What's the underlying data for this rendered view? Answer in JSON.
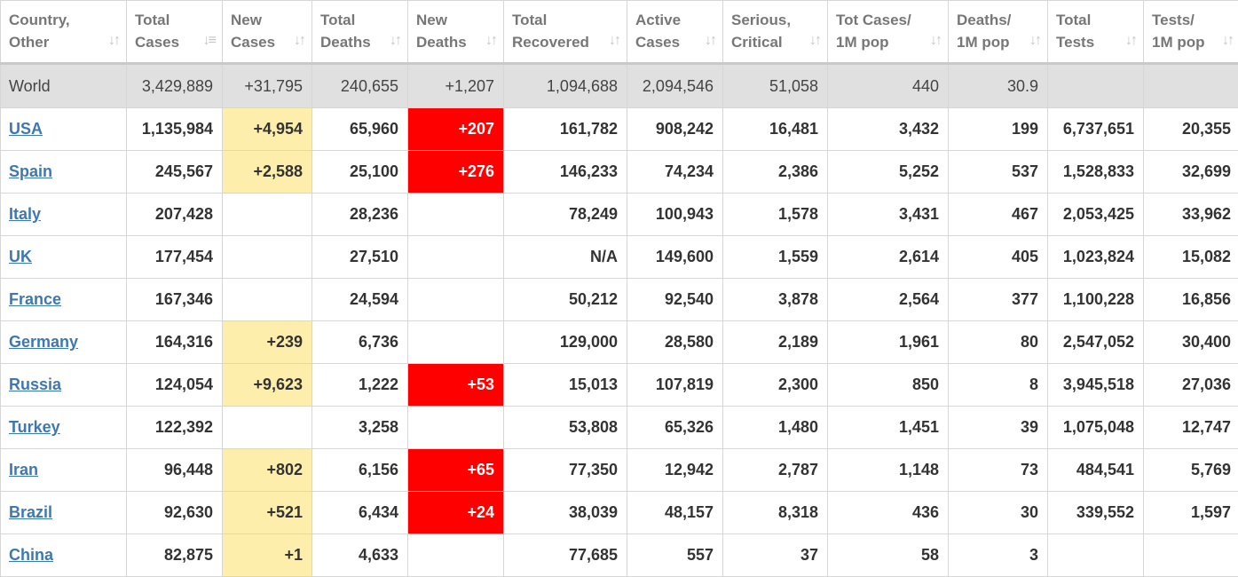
{
  "headers": [
    {
      "line1": "Country,",
      "line2": "Other"
    },
    {
      "line1": "Total",
      "line2": "Cases"
    },
    {
      "line1": "New",
      "line2": "Cases"
    },
    {
      "line1": "Total",
      "line2": "Deaths"
    },
    {
      "line1": "New",
      "line2": "Deaths"
    },
    {
      "line1": "Total",
      "line2": "Recovered"
    },
    {
      "line1": "Active",
      "line2": "Cases"
    },
    {
      "line1": "Serious,",
      "line2": "Critical"
    },
    {
      "line1": "Tot Cases/",
      "line2": "1M pop"
    },
    {
      "line1": "Deaths/",
      "line2": "1M pop"
    },
    {
      "line1": "Total",
      "line2": "Tests"
    },
    {
      "line1": "Tests/",
      "line2": "1M pop"
    }
  ],
  "icons": {
    "sort": "sort-arrows-icon",
    "sort_active": "sort-descending-icon"
  },
  "colors": {
    "new_cases_highlight": "#fdeeab",
    "new_deaths_highlight": "#ff0000",
    "link": "#3d78b4",
    "world_row": "#e0e0e0"
  },
  "world": [
    "World",
    "3,429,889",
    "+31,795",
    "240,655",
    "+1,207",
    "1,094,688",
    "2,094,546",
    "51,058",
    "440",
    "30.9",
    "",
    ""
  ],
  "rows": [
    [
      "USA",
      "1,135,984",
      "+4,954",
      "65,960",
      "+207",
      "161,782",
      "908,242",
      "16,481",
      "3,432",
      "199",
      "6,737,651",
      "20,355"
    ],
    [
      "Spain",
      "245,567",
      "+2,588",
      "25,100",
      "+276",
      "146,233",
      "74,234",
      "2,386",
      "5,252",
      "537",
      "1,528,833",
      "32,699"
    ],
    [
      "Italy",
      "207,428",
      "",
      "28,236",
      "",
      "78,249",
      "100,943",
      "1,578",
      "3,431",
      "467",
      "2,053,425",
      "33,962"
    ],
    [
      "UK",
      "177,454",
      "",
      "27,510",
      "",
      "N/A",
      "149,600",
      "1,559",
      "2,614",
      "405",
      "1,023,824",
      "15,082"
    ],
    [
      "France",
      "167,346",
      "",
      "24,594",
      "",
      "50,212",
      "92,540",
      "3,878",
      "2,564",
      "377",
      "1,100,228",
      "16,856"
    ],
    [
      "Germany",
      "164,316",
      "+239",
      "6,736",
      "",
      "129,000",
      "28,580",
      "2,189",
      "1,961",
      "80",
      "2,547,052",
      "30,400"
    ],
    [
      "Russia",
      "124,054",
      "+9,623",
      "1,222",
      "+53",
      "15,013",
      "107,819",
      "2,300",
      "850",
      "8",
      "3,945,518",
      "27,036"
    ],
    [
      "Turkey",
      "122,392",
      "",
      "3,258",
      "",
      "53,808",
      "65,326",
      "1,480",
      "1,451",
      "39",
      "1,075,048",
      "12,747"
    ],
    [
      "Iran",
      "96,448",
      "+802",
      "6,156",
      "+65",
      "77,350",
      "12,942",
      "2,787",
      "1,148",
      "73",
      "484,541",
      "5,769"
    ],
    [
      "Brazil",
      "92,630",
      "+521",
      "6,434",
      "+24",
      "38,039",
      "48,157",
      "8,318",
      "436",
      "30",
      "339,552",
      "1,597"
    ],
    [
      "China",
      "82,875",
      "+1",
      "4,633",
      "",
      "77,685",
      "557",
      "37",
      "58",
      "3",
      "",
      ""
    ]
  ]
}
